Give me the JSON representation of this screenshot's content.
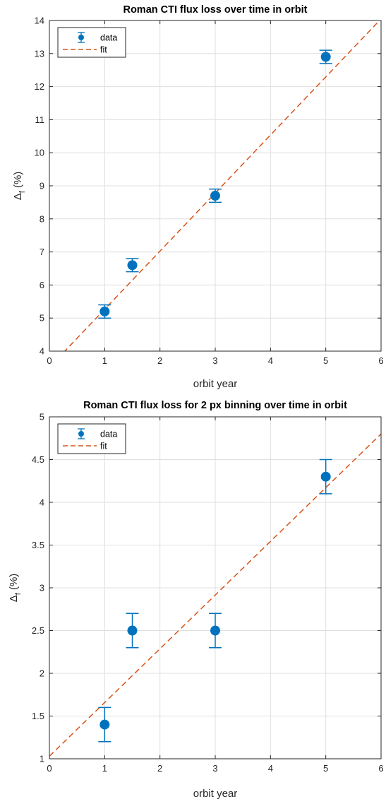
{
  "chart_data": [
    {
      "type": "scatter",
      "title": "Roman CTI flux loss over time in orbit",
      "xlabel": "orbit year",
      "ylabel_main": "Δ",
      "ylabel_sub": "f",
      "ylabel_rest": " (%)",
      "xlim": [
        0,
        6
      ],
      "ylim": [
        4,
        14
      ],
      "xticks": [
        0,
        1,
        2,
        3,
        4,
        5,
        6
      ],
      "yticks": [
        4,
        5,
        6,
        7,
        8,
        9,
        10,
        11,
        12,
        13,
        14
      ],
      "xtick_labels": [
        "0",
        "1",
        "2",
        "3",
        "4",
        "5",
        "6"
      ],
      "ytick_labels": [
        "4",
        "5",
        "6",
        "7",
        "8",
        "9",
        "10",
        "11",
        "12",
        "13",
        "14"
      ],
      "grid": true,
      "legend_position": "top-left",
      "series": [
        {
          "name": "data",
          "kind": "errorbar",
          "color": "#0072BD",
          "x": [
            1,
            1.5,
            3,
            5
          ],
          "y": [
            5.2,
            6.6,
            8.7,
            12.9
          ],
          "err": [
            0.2,
            0.2,
            0.2,
            0.2
          ]
        },
        {
          "name": "fit",
          "kind": "dashed-line",
          "color": "#D95319",
          "x": [
            0.25,
            6
          ],
          "y": [
            3.95,
            14.05
          ]
        }
      ]
    },
    {
      "type": "scatter",
      "title": "Roman CTI flux loss for 2 px binning over time in orbit",
      "xlabel": "orbit year",
      "ylabel_main": "Δ",
      "ylabel_sub": "f",
      "ylabel_rest": " (%)",
      "xlim": [
        0,
        6
      ],
      "ylim": [
        1,
        5
      ],
      "xticks": [
        0,
        1,
        2,
        3,
        4,
        5,
        6
      ],
      "yticks": [
        1,
        1.5,
        2,
        2.5,
        3,
        3.5,
        4,
        4.5,
        5
      ],
      "xtick_labels": [
        "0",
        "1",
        "2",
        "3",
        "4",
        "5",
        "6"
      ],
      "ytick_labels": [
        "1",
        "1.5",
        "2",
        "2.5",
        "3",
        "3.5",
        "4",
        "4.5",
        "5"
      ],
      "grid": true,
      "legend_position": "top-left",
      "series": [
        {
          "name": "data",
          "kind": "errorbar",
          "color": "#0072BD",
          "x": [
            1,
            1.5,
            3,
            5
          ],
          "y": [
            1.4,
            2.5,
            2.5,
            4.3
          ],
          "err": [
            0.2,
            0.2,
            0.2,
            0.2
          ]
        },
        {
          "name": "fit",
          "kind": "dashed-line",
          "color": "#D95319",
          "x": [
            0,
            6
          ],
          "y": [
            1.03,
            4.8
          ]
        }
      ]
    }
  ]
}
